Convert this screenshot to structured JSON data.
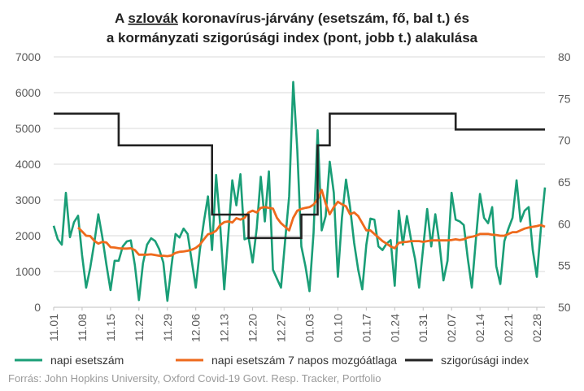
{
  "chart_data": {
    "type": "line",
    "title_line1_pre": "A ",
    "title_line1_underlined": "szlovák",
    "title_line1_post": " koronavírus-járvány (esetszám, fő, bal t.) és",
    "title_line2": "a kormányzati szigorúsági index (pont, jobb t.) alakulása",
    "source": "Forrás: John Hopkins University, Oxford Covid-19 Govt. Resp. Tracker, Portfolio",
    "x_tick_labels": [
      "11.01",
      "11.08",
      "11.15",
      "11.22",
      "11.29",
      "12.06",
      "12.13",
      "12.20",
      "12.27",
      "01.03",
      "01.10",
      "01.17",
      "01.24",
      "01.31",
      "02.07",
      "02.14",
      "02.21",
      "02.28"
    ],
    "y_left": {
      "min": 0,
      "max": 7000,
      "ticks": [
        "0",
        "1000",
        "2000",
        "3000",
        "4000",
        "5000",
        "6000",
        "7000"
      ]
    },
    "y_right": {
      "min": 50,
      "max": 80,
      "ticks": [
        "50",
        "55",
        "60",
        "65",
        "70",
        "75",
        "80"
      ]
    },
    "grid": "horizontal",
    "legend_position": "bottom",
    "series": [
      {
        "name": "napi esetszám",
        "axis": "left",
        "color": "#1a9e77",
        "values": [
          2280,
          1900,
          1750,
          3200,
          1960,
          2380,
          2560,
          1460,
          550,
          1100,
          1800,
          2600,
          1950,
          1180,
          480,
          1300,
          1300,
          1700,
          1840,
          1870,
          1180,
          200,
          1230,
          1750,
          1930,
          1850,
          1620,
          1250,
          180,
          1150,
          2050,
          1950,
          2200,
          2050,
          1300,
          550,
          1600,
          2400,
          3100,
          1600,
          3700,
          2300,
          500,
          2000,
          3550,
          2850,
          3720,
          1900,
          1950,
          1250,
          2200,
          3650,
          2400,
          3800,
          1050,
          800,
          550,
          1850,
          3100,
          6300,
          4400,
          1700,
          1150,
          450,
          2080,
          4950,
          2150,
          2550,
          4070,
          3200,
          850,
          2500,
          3570,
          2800,
          1800,
          1050,
          500,
          1750,
          2480,
          2450,
          1700,
          1600,
          1780,
          1880,
          600,
          2700,
          1750,
          2550,
          1900,
          1350,
          550,
          1650,
          2750,
          1700,
          2600,
          1800,
          750,
          1300,
          3200,
          2450,
          2400,
          2300,
          1350,
          550,
          1900,
          3170,
          2500,
          2350,
          2800,
          1150,
          650,
          1850,
          2200,
          2500,
          3550,
          2400,
          2700,
          2800,
          1600,
          850,
          2200,
          3350
        ]
      },
      {
        "name": "napi esetszám 7 napos mozgóátlaga",
        "axis": "left",
        "color": "#ee6a1c",
        "values": [
          null,
          null,
          null,
          null,
          null,
          null,
          2230,
          2120,
          2000,
          1990,
          1860,
          1780,
          1830,
          1810,
          1680,
          1670,
          1650,
          1640,
          1640,
          1650,
          1600,
          1470,
          1470,
          1470,
          1480,
          1460,
          1440,
          1440,
          1430,
          1450,
          1520,
          1550,
          1560,
          1580,
          1610,
          1660,
          1750,
          1900,
          2040,
          2070,
          2140,
          2300,
          2380,
          2400,
          2370,
          2490,
          2450,
          2500,
          2650,
          2700,
          2650,
          2780,
          2800,
          2780,
          2760,
          2500,
          2350,
          2250,
          2150,
          2500,
          2700,
          2750,
          2780,
          2800,
          2870,
          3020,
          3280,
          2900,
          2600,
          2800,
          2950,
          2880,
          2820,
          2600,
          2650,
          2550,
          2350,
          2150,
          2150,
          2050,
          1950,
          1850,
          1780,
          1700,
          1650,
          1800,
          1820,
          1830,
          1850,
          1850,
          1850,
          1830,
          1850,
          1870,
          1870,
          1870,
          1870,
          1870,
          1880,
          1900,
          1880,
          1900,
          1950,
          1970,
          2000,
          2050,
          2050,
          2050,
          2030,
          2020,
          2000,
          2000,
          2050,
          2100,
          2100,
          2150,
          2200,
          2230,
          2250,
          2270,
          2300,
          2250
        ]
      },
      {
        "name": "szigorúsági index",
        "axis": "right",
        "color": "#222222",
        "steps": [
          {
            "start": 0,
            "end": 16,
            "value": 73.2
          },
          {
            "start": 16,
            "end": 39,
            "value": 69.4
          },
          {
            "start": 39,
            "end": 48,
            "value": 61.1
          },
          {
            "start": 48,
            "end": 61,
            "value": 58.3
          },
          {
            "start": 61,
            "end": 65,
            "value": 61.1
          },
          {
            "start": 65,
            "end": 68,
            "value": 69.4
          },
          {
            "start": 68,
            "end": 99,
            "value": 73.2
          },
          {
            "start": 99,
            "end": 121,
            "value": 71.3
          }
        ]
      }
    ]
  }
}
